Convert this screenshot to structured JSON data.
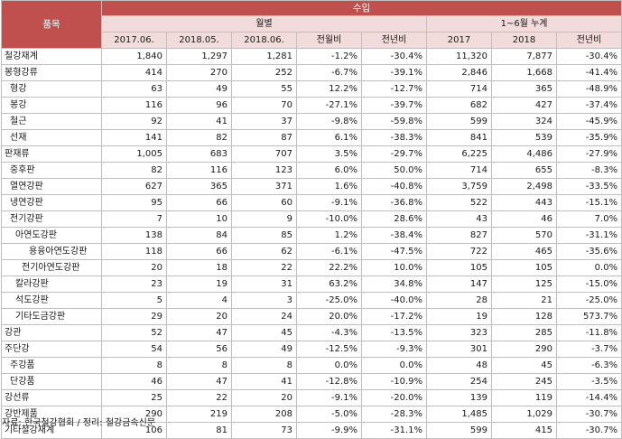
{
  "header": {
    "group_title": "수입",
    "item_label": "품목",
    "monthly_label": "월별",
    "cumulative_label": "1~6월 누계",
    "columns": [
      "2017.06.",
      "2018.05.",
      "2018.06.",
      "전월비",
      "전년비",
      "2017",
      "2018",
      "전년비"
    ]
  },
  "rows": [
    {
      "name": "철강재계",
      "level": 0,
      "values": [
        "1,840",
        "1,297",
        "1,281",
        "-1.2%",
        "-30.4%",
        "11,320",
        "7,877",
        "-30.4%"
      ]
    },
    {
      "name": "봉형강류",
      "level": 0,
      "values": [
        "414",
        "270",
        "252",
        "-6.7%",
        "-39.1%",
        "2,846",
        "1,668",
        "-41.4%"
      ]
    },
    {
      "name": "형강",
      "level": 1,
      "values": [
        "63",
        "49",
        "55",
        "12.2%",
        "-12.7%",
        "714",
        "365",
        "-48.9%"
      ]
    },
    {
      "name": "봉강",
      "level": 1,
      "values": [
        "116",
        "96",
        "70",
        "-27.1%",
        "-39.7%",
        "682",
        "427",
        "-37.4%"
      ]
    },
    {
      "name": "철근",
      "level": 1,
      "values": [
        "92",
        "41",
        "37",
        "-9.8%",
        "-59.8%",
        "599",
        "324",
        "-45.9%"
      ]
    },
    {
      "name": "선재",
      "level": 1,
      "values": [
        "141",
        "82",
        "87",
        "6.1%",
        "-38.3%",
        "841",
        "539",
        "-35.9%"
      ]
    },
    {
      "name": "판재류",
      "level": 0,
      "values": [
        "1,005",
        "683",
        "707",
        "3.5%",
        "-29.7%",
        "6,225",
        "4,486",
        "-27.9%"
      ]
    },
    {
      "name": "중후판",
      "level": 1,
      "values": [
        "82",
        "116",
        "123",
        "6.0%",
        "50.0%",
        "714",
        "655",
        "-8.3%"
      ]
    },
    {
      "name": "열연강판",
      "level": 1,
      "values": [
        "627",
        "365",
        "371",
        "1.6%",
        "-40.8%",
        "3,759",
        "2,498",
        "-33.5%"
      ]
    },
    {
      "name": "냉연강판",
      "level": 1,
      "values": [
        "95",
        "66",
        "60",
        "-9.1%",
        "-36.8%",
        "522",
        "443",
        "-15.1%"
      ]
    },
    {
      "name": "전기강판",
      "level": 1,
      "values": [
        "7",
        "10",
        "9",
        "-10.0%",
        "28.6%",
        "43",
        "46",
        "7.0%"
      ]
    },
    {
      "name": "아연도강판",
      "level": 2,
      "values": [
        "138",
        "84",
        "85",
        "1.2%",
        "-38.4%",
        "827",
        "570",
        "-31.1%"
      ]
    },
    {
      "name": "용융아연도강판",
      "level": 4,
      "values": [
        "118",
        "66",
        "62",
        "-6.1%",
        "-47.5%",
        "722",
        "465",
        "-35.6%"
      ]
    },
    {
      "name": "전기아연도강판",
      "level": 3,
      "values": [
        "20",
        "18",
        "22",
        "22.2%",
        "10.0%",
        "105",
        "105",
        "0.0%"
      ]
    },
    {
      "name": "칼라강판",
      "level": 2,
      "values": [
        "23",
        "19",
        "31",
        "63.2%",
        "34.8%",
        "147",
        "125",
        "-15.0%"
      ]
    },
    {
      "name": "석도강판",
      "level": 2,
      "values": [
        "5",
        "4",
        "3",
        "-25.0%",
        "-40.0%",
        "28",
        "21",
        "-25.0%"
      ]
    },
    {
      "name": "기타도금강판",
      "level": 2,
      "values": [
        "29",
        "20",
        "24",
        "20.0%",
        "-17.2%",
        "19",
        "128",
        "573.7%"
      ]
    },
    {
      "name": "강관",
      "level": 0,
      "values": [
        "52",
        "47",
        "45",
        "-4.3%",
        "-13.5%",
        "323",
        "285",
        "-11.8%"
      ]
    },
    {
      "name": "주단강",
      "level": 0,
      "values": [
        "54",
        "56",
        "49",
        "-12.5%",
        "-9.3%",
        "301",
        "290",
        "-3.7%"
      ]
    },
    {
      "name": "주강품",
      "level": 1,
      "values": [
        "8",
        "8",
        "8",
        "0.0%",
        "0.0%",
        "48",
        "45",
        "-6.3%"
      ]
    },
    {
      "name": "단강품",
      "level": 1,
      "values": [
        "46",
        "47",
        "41",
        "-12.8%",
        "-10.9%",
        "254",
        "245",
        "-3.5%"
      ]
    },
    {
      "name": "강선류",
      "level": 0,
      "values": [
        "25",
        "22",
        "20",
        "-9.1%",
        "-20.0%",
        "139",
        "119",
        "-14.4%"
      ]
    },
    {
      "name": "강반제품",
      "level": 0,
      "values": [
        "290",
        "219",
        "208",
        "-5.0%",
        "-28.3%",
        "1,485",
        "1,029",
        "-30.7%"
      ]
    },
    {
      "name": "기타철강재계",
      "level": 0,
      "values": [
        "106",
        "81",
        "73",
        "-9.9%",
        "-31.1%",
        "599",
        "415",
        "-30.7%"
      ]
    }
  ],
  "footer": {
    "source": "자료: 한국철강협회 / 정리: 철강금속신문"
  },
  "colors": {
    "title_bg": "#c0504d",
    "header_bg": "#f2dcdb",
    "border": "#bfbfbf"
  }
}
